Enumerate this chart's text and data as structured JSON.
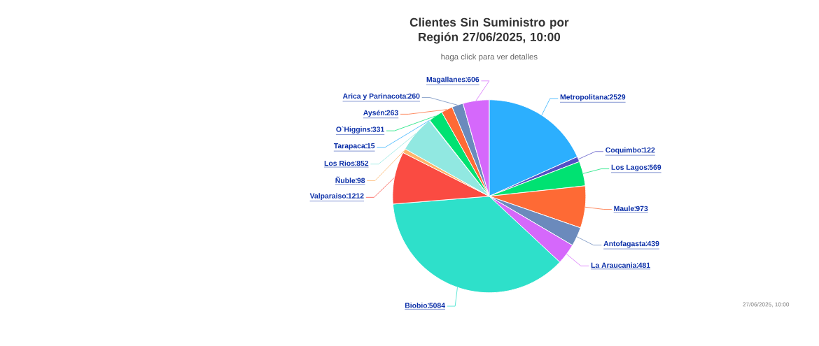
{
  "chart_data": {
    "type": "pie",
    "title": "Clientes Sin Suministro por Región 27/06/2025, 10:00",
    "subtitle": "haga click para ver detalles",
    "categories": [
      "Metropolitana",
      "Coquimbo",
      "Los Lagos",
      "Maule",
      "Antofagasta",
      "La Araucania",
      "Biobio",
      "Valparaiso",
      "Ñuble",
      "Los Rios",
      "Tarapaca",
      "O`Higgins",
      "Aysén",
      "Arica y Parinacota",
      "Magallanes"
    ],
    "values": [
      2529,
      122,
      569,
      973,
      439,
      481,
      5084,
      1212,
      98,
      852,
      15,
      331,
      263,
      260,
      606
    ],
    "colors": [
      "#2caffe",
      "#544fc5",
      "#00e272",
      "#fe6a35",
      "#6b8abc",
      "#d568fb",
      "#2ee0ca",
      "#fa4b42",
      "#feb56a",
      "#91e8e1",
      "#2caffe",
      "#00e272",
      "#fe6a35",
      "#6b8abc",
      "#d568fb"
    ],
    "data_labels": true,
    "annotations": [
      "27/06/2025, 10:00"
    ]
  }
}
